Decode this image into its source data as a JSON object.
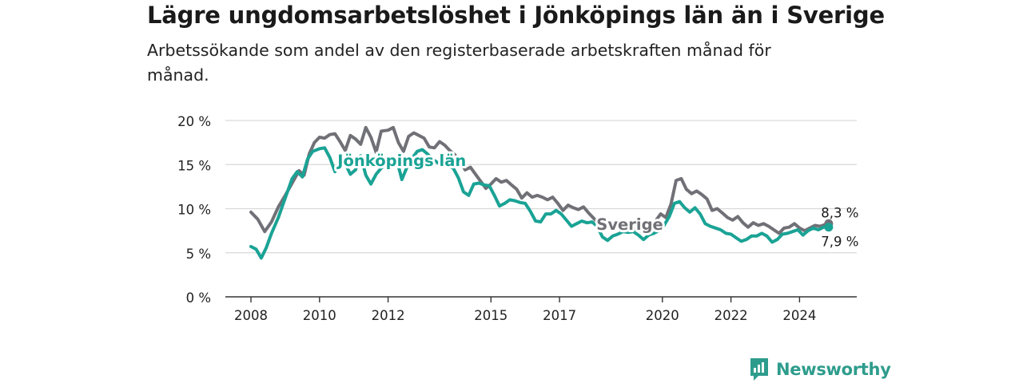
{
  "title": "Lägre ungdomsarbetslöshet i Jönköpings län än i Sverige",
  "subtitle": "Arbetssökande som andel av den registerbaserade arbetskraften månad för månad.",
  "brand": "Newsworthy",
  "colors": {
    "sverige": "#707077",
    "jonkoping": "#1aa395",
    "grid": "#d9d9d9",
    "axis": "#333333",
    "brand": "#2e9c8c"
  },
  "chart_data": {
    "type": "line",
    "xlim": [
      2008,
      2025.5
    ],
    "ylim": [
      0,
      20
    ],
    "grid": true,
    "x_ticks": [
      {
        "value": 2008,
        "label": "2008"
      },
      {
        "value": 2010,
        "label": "2010"
      },
      {
        "value": 2012,
        "label": "2012"
      },
      {
        "value": 2015,
        "label": "2015"
      },
      {
        "value": 2017,
        "label": "2017"
      },
      {
        "value": 2020,
        "label": "2020"
      },
      {
        "value": 2022,
        "label": "2022"
      },
      {
        "value": 2024,
        "label": "2024"
      }
    ],
    "y_ticks": [
      {
        "value": 0,
        "label": "0 %"
      },
      {
        "value": 5,
        "label": "5 %"
      },
      {
        "value": 10,
        "label": "10 %"
      },
      {
        "value": 15,
        "label": "15 %"
      },
      {
        "value": 20,
        "label": "20 %"
      }
    ],
    "series": [
      {
        "name": "Sverige",
        "key": "sverige",
        "end_label": "8,3 %",
        "points": [
          [
            2008.0,
            9.6
          ],
          [
            2008.2,
            8.8
          ],
          [
            2008.4,
            7.4
          ],
          [
            2008.6,
            8.5
          ],
          [
            2008.8,
            10.2
          ],
          [
            2009.0,
            11.5
          ],
          [
            2009.2,
            12.9
          ],
          [
            2009.4,
            14.3
          ],
          [
            2009.55,
            13.8
          ],
          [
            2009.7,
            16.2
          ],
          [
            2009.85,
            17.5
          ],
          [
            2010.0,
            18.1
          ],
          [
            2010.15,
            18.0
          ],
          [
            2010.3,
            18.4
          ],
          [
            2010.45,
            18.5
          ],
          [
            2010.6,
            17.6
          ],
          [
            2010.75,
            16.6
          ],
          [
            2010.9,
            18.3
          ],
          [
            2011.05,
            17.9
          ],
          [
            2011.2,
            17.3
          ],
          [
            2011.35,
            19.2
          ],
          [
            2011.5,
            18.1
          ],
          [
            2011.65,
            16.4
          ],
          [
            2011.8,
            18.8
          ],
          [
            2012.0,
            18.9
          ],
          [
            2012.15,
            19.2
          ],
          [
            2012.3,
            17.5
          ],
          [
            2012.45,
            16.5
          ],
          [
            2012.6,
            18.2
          ],
          [
            2012.75,
            18.6
          ],
          [
            2012.9,
            18.3
          ],
          [
            2013.05,
            18.0
          ],
          [
            2013.2,
            17.0
          ],
          [
            2013.35,
            16.9
          ],
          [
            2013.5,
            17.6
          ],
          [
            2013.65,
            17.2
          ],
          [
            2013.8,
            16.6
          ],
          [
            2013.95,
            16.1
          ],
          [
            2014.1,
            15.3
          ],
          [
            2014.25,
            14.4
          ],
          [
            2014.4,
            14.7
          ],
          [
            2014.55,
            13.9
          ],
          [
            2014.7,
            13.1
          ],
          [
            2014.85,
            12.3
          ],
          [
            2015.0,
            12.8
          ],
          [
            2015.15,
            13.4
          ],
          [
            2015.3,
            13.0
          ],
          [
            2015.45,
            13.2
          ],
          [
            2015.6,
            12.7
          ],
          [
            2015.75,
            12.2
          ],
          [
            2015.9,
            11.2
          ],
          [
            2016.05,
            11.8
          ],
          [
            2016.2,
            11.3
          ],
          [
            2016.35,
            11.5
          ],
          [
            2016.5,
            11.3
          ],
          [
            2016.65,
            11.0
          ],
          [
            2016.8,
            11.3
          ],
          [
            2016.95,
            10.6
          ],
          [
            2017.1,
            9.8
          ],
          [
            2017.25,
            10.4
          ],
          [
            2017.4,
            10.1
          ],
          [
            2017.55,
            9.9
          ],
          [
            2017.7,
            10.2
          ],
          [
            2017.85,
            9.5
          ],
          [
            2018.0,
            8.9
          ],
          [
            2018.15,
            8.3
          ],
          [
            2018.3,
            8.0
          ],
          [
            2018.45,
            7.9
          ],
          [
            2018.6,
            7.9
          ],
          [
            2018.75,
            8.4
          ],
          [
            2018.9,
            8.6
          ],
          [
            2019.05,
            8.1
          ],
          [
            2019.2,
            7.6
          ],
          [
            2019.35,
            7.5
          ],
          [
            2019.5,
            7.5
          ],
          [
            2019.65,
            7.9
          ],
          [
            2019.8,
            8.6
          ],
          [
            2019.95,
            9.4
          ],
          [
            2020.1,
            9.0
          ],
          [
            2020.25,
            10.5
          ],
          [
            2020.4,
            13.2
          ],
          [
            2020.55,
            13.4
          ],
          [
            2020.7,
            12.2
          ],
          [
            2020.85,
            11.7
          ],
          [
            2021.0,
            12.0
          ],
          [
            2021.15,
            11.6
          ],
          [
            2021.3,
            11.1
          ],
          [
            2021.45,
            9.8
          ],
          [
            2021.6,
            10.0
          ],
          [
            2021.75,
            9.5
          ],
          [
            2021.9,
            9.0
          ],
          [
            2022.05,
            8.7
          ],
          [
            2022.2,
            9.1
          ],
          [
            2022.35,
            8.4
          ],
          [
            2022.5,
            7.9
          ],
          [
            2022.65,
            8.4
          ],
          [
            2022.8,
            8.1
          ],
          [
            2022.95,
            8.3
          ],
          [
            2023.1,
            8.0
          ],
          [
            2023.25,
            7.6
          ],
          [
            2023.4,
            7.2
          ],
          [
            2023.55,
            7.8
          ],
          [
            2023.7,
            7.9
          ],
          [
            2023.85,
            8.3
          ],
          [
            2024.0,
            7.8
          ],
          [
            2024.15,
            7.5
          ],
          [
            2024.3,
            7.8
          ],
          [
            2024.45,
            8.1
          ],
          [
            2024.6,
            8.0
          ],
          [
            2024.75,
            8.2
          ],
          [
            2024.85,
            8.3
          ]
        ]
      },
      {
        "name": "Jönköpings län",
        "key": "jonkoping",
        "end_label": "7,9 %",
        "points": [
          [
            2008.0,
            5.7
          ],
          [
            2008.15,
            5.4
          ],
          [
            2008.3,
            4.4
          ],
          [
            2008.45,
            5.6
          ],
          [
            2008.6,
            7.2
          ],
          [
            2008.8,
            9.0
          ],
          [
            2009.0,
            11.2
          ],
          [
            2009.2,
            13.4
          ],
          [
            2009.35,
            14.2
          ],
          [
            2009.5,
            13.6
          ],
          [
            2009.65,
            15.6
          ],
          [
            2009.8,
            16.5
          ],
          [
            2010.0,
            16.8
          ],
          [
            2010.15,
            16.9
          ],
          [
            2010.3,
            15.8
          ],
          [
            2010.45,
            14.2
          ],
          [
            2010.6,
            15.6
          ],
          [
            2010.75,
            15.1
          ],
          [
            2010.9,
            13.9
          ],
          [
            2011.05,
            14.4
          ],
          [
            2011.2,
            16.0
          ],
          [
            2011.35,
            13.8
          ],
          [
            2011.5,
            12.8
          ],
          [
            2011.65,
            13.9
          ],
          [
            2011.8,
            14.6
          ],
          [
            2011.95,
            15.1
          ],
          [
            2012.1,
            15.4
          ],
          [
            2012.25,
            15.6
          ],
          [
            2012.4,
            13.3
          ],
          [
            2012.55,
            14.7
          ],
          [
            2012.7,
            15.7
          ],
          [
            2012.85,
            16.5
          ],
          [
            2013.0,
            16.7
          ],
          [
            2013.15,
            16.2
          ],
          [
            2013.3,
            15.6
          ],
          [
            2013.45,
            15.2
          ],
          [
            2013.6,
            15.2
          ],
          [
            2013.75,
            14.9
          ],
          [
            2013.9,
            14.6
          ],
          [
            2014.05,
            13.5
          ],
          [
            2014.2,
            11.9
          ],
          [
            2014.35,
            11.5
          ],
          [
            2014.5,
            12.8
          ],
          [
            2014.65,
            12.9
          ],
          [
            2014.8,
            12.7
          ],
          [
            2014.95,
            12.6
          ],
          [
            2015.1,
            11.5
          ],
          [
            2015.25,
            10.3
          ],
          [
            2015.4,
            10.6
          ],
          [
            2015.55,
            11.0
          ],
          [
            2015.7,
            10.9
          ],
          [
            2015.85,
            10.7
          ],
          [
            2016.0,
            10.6
          ],
          [
            2016.15,
            9.7
          ],
          [
            2016.3,
            8.6
          ],
          [
            2016.45,
            8.5
          ],
          [
            2016.6,
            9.4
          ],
          [
            2016.75,
            9.4
          ],
          [
            2016.9,
            9.8
          ],
          [
            2017.05,
            9.4
          ],
          [
            2017.2,
            8.7
          ],
          [
            2017.35,
            8.0
          ],
          [
            2017.5,
            8.3
          ],
          [
            2017.65,
            8.6
          ],
          [
            2017.8,
            8.4
          ],
          [
            2017.95,
            8.5
          ],
          [
            2018.1,
            8.0
          ],
          [
            2018.25,
            6.8
          ],
          [
            2018.4,
            6.4
          ],
          [
            2018.55,
            6.9
          ],
          [
            2018.7,
            7.1
          ],
          [
            2018.85,
            7.4
          ],
          [
            2019.0,
            7.3
          ],
          [
            2019.15,
            7.4
          ],
          [
            2019.3,
            7.0
          ],
          [
            2019.45,
            6.5
          ],
          [
            2019.6,
            7.0
          ],
          [
            2019.75,
            7.2
          ],
          [
            2019.9,
            7.5
          ],
          [
            2020.05,
            8.1
          ],
          [
            2020.2,
            9.1
          ],
          [
            2020.35,
            10.6
          ],
          [
            2020.5,
            10.8
          ],
          [
            2020.65,
            10.1
          ],
          [
            2020.8,
            9.6
          ],
          [
            2020.95,
            10.1
          ],
          [
            2021.1,
            9.4
          ],
          [
            2021.25,
            8.3
          ],
          [
            2021.4,
            8.0
          ],
          [
            2021.55,
            7.8
          ],
          [
            2021.7,
            7.6
          ],
          [
            2021.85,
            7.2
          ],
          [
            2022.0,
            7.1
          ],
          [
            2022.15,
            6.7
          ],
          [
            2022.3,
            6.3
          ],
          [
            2022.45,
            6.5
          ],
          [
            2022.6,
            6.9
          ],
          [
            2022.75,
            6.9
          ],
          [
            2022.9,
            7.2
          ],
          [
            2023.05,
            6.9
          ],
          [
            2023.2,
            6.2
          ],
          [
            2023.35,
            6.5
          ],
          [
            2023.5,
            7.1
          ],
          [
            2023.65,
            7.2
          ],
          [
            2023.8,
            7.4
          ],
          [
            2023.95,
            7.6
          ],
          [
            2024.1,
            7.0
          ],
          [
            2024.25,
            7.5
          ],
          [
            2024.4,
            7.8
          ],
          [
            2024.55,
            7.6
          ],
          [
            2024.7,
            7.9
          ],
          [
            2024.85,
            7.9
          ]
        ]
      }
    ]
  }
}
